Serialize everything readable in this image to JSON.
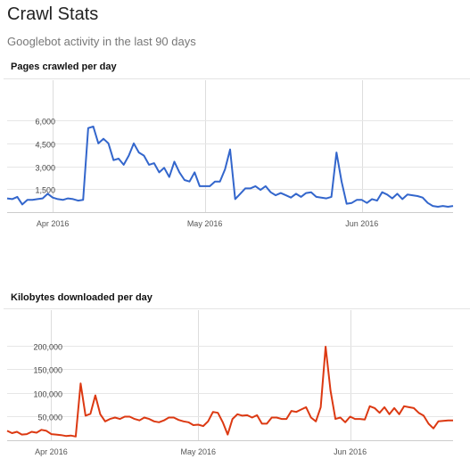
{
  "header": {
    "title": "Crawl Stats",
    "subtitle": "Googlebot activity in the last 90 days"
  },
  "chart_data": [
    {
      "type": "line",
      "title": "Pages crawled per day",
      "color": "#3366cc",
      "ylim": [
        0,
        7000
      ],
      "yticks": [
        "6,000",
        "4,500",
        "3,000",
        "1,500"
      ],
      "ytick_values": [
        6000,
        4500,
        3000,
        1500
      ],
      "xticks": [
        "Apr 2016",
        "May 2016",
        "Jun 2016"
      ],
      "xtick_index": [
        9,
        39,
        70
      ],
      "grid": true,
      "series": [
        {
          "values": [
            900,
            850,
            1000,
            500,
            800,
            800,
            850,
            900,
            1200,
            950,
            850,
            800,
            900,
            850,
            750,
            800,
            5500,
            5600,
            4500,
            4800,
            4500,
            3400,
            3500,
            3100,
            3700,
            4500,
            3900,
            3700,
            3100,
            3200,
            2600,
            2900,
            2300,
            3300,
            2600,
            2100,
            2000,
            2600,
            1700,
            1700,
            1700,
            2000,
            2000,
            2800,
            4100,
            850,
            1200,
            1550,
            1550,
            1700,
            1450,
            1700,
            1300,
            1100,
            1250,
            1100,
            950,
            1200,
            1000,
            1250,
            1300,
            1000,
            950,
            900,
            1000,
            3900,
            2000,
            550,
            600,
            800,
            800,
            600,
            850,
            750,
            1300,
            1150,
            900,
            1200,
            850,
            1150,
            1100,
            1050,
            950,
            600,
            400,
            350,
            400,
            350,
            400
          ]
        }
      ]
    },
    {
      "type": "line",
      "title": "Kilobytes downloaded per day",
      "color": "#dc3912",
      "ylim": [
        0,
        230000
      ],
      "yticks": [
        "200,000",
        "150,000",
        "100,000",
        "50,000"
      ],
      "ytick_values": [
        200000,
        150000,
        100000,
        50000
      ],
      "xticks": [
        "Apr 2016",
        "May 2016",
        "Jun 2016"
      ],
      "xtick_index": [
        9,
        39,
        70
      ],
      "grid": true,
      "series": [
        {
          "values": [
            20000,
            15000,
            18000,
            12000,
            13000,
            18000,
            16000,
            22000,
            20000,
            13000,
            12000,
            11000,
            9000,
            10000,
            8000,
            120000,
            52000,
            56000,
            95000,
            55000,
            40000,
            45000,
            48000,
            45000,
            50000,
            50000,
            45000,
            42000,
            48000,
            45000,
            40000,
            38000,
            42000,
            48000,
            48000,
            43000,
            40000,
            38000,
            32000,
            33000,
            30000,
            40000,
            60000,
            58000,
            38000,
            12000,
            45000,
            55000,
            52000,
            53000,
            48000,
            53000,
            35000,
            35000,
            48000,
            48000,
            45000,
            45000,
            62000,
            60000,
            65000,
            70000,
            48000,
            40000,
            70000,
            198000,
            105000,
            45000,
            48000,
            38000,
            50000,
            45000,
            45000,
            44000,
            72000,
            68000,
            58000,
            70000,
            55000,
            68000,
            55000,
            72000,
            70000,
            68000,
            58000,
            52000,
            35000,
            25000,
            40000,
            41000,
            42000,
            42000
          ]
        }
      ]
    }
  ]
}
